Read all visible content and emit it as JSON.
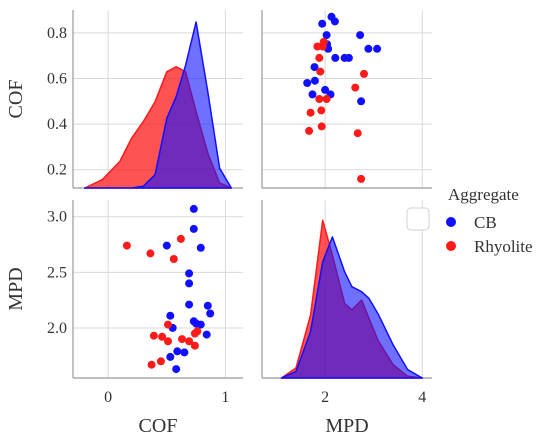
{
  "colors": {
    "cb": "#1010ff",
    "rhyolite": "#ff1a1a",
    "overlap": "#7b1fc9",
    "grid": "#d9d9d9",
    "axis": "#999999",
    "text": "#333333"
  },
  "legend": {
    "title": "Aggregate",
    "items": [
      {
        "label": "CB",
        "color": "#1010ff"
      },
      {
        "label": "Rhyolite",
        "color": "#ff1a1a"
      }
    ]
  },
  "chart_data": {
    "type": "pairplot",
    "variables": [
      "COF",
      "MPD"
    ],
    "hue": "Aggregate",
    "axes": {
      "COF": {
        "label": "COF",
        "range": [
          -0.3,
          1.15
        ],
        "ticks": [
          0,
          1
        ],
        "ticks_y": [
          0.2,
          0.4,
          0.6,
          0.8
        ],
        "range_y": [
          0.12,
          0.9
        ]
      },
      "MPD": {
        "label": "MPD",
        "range": [
          0.7,
          4.2
        ],
        "ticks": [
          2,
          4
        ],
        "ticks_y": [
          2.0,
          2.5,
          3.0
        ],
        "range_y": [
          1.55,
          3.15
        ]
      }
    },
    "points": {
      "CB": [
        {
          "cof": 0.73,
          "mpd": 3.07
        },
        {
          "cof": 0.73,
          "mpd": 2.89
        },
        {
          "cof": 0.5,
          "mpd": 2.74
        },
        {
          "cof": 0.79,
          "mpd": 2.72
        },
        {
          "cof": 0.87,
          "mpd": 2.13
        },
        {
          "cof": 0.85,
          "mpd": 2.2
        },
        {
          "cof": 0.69,
          "mpd": 2.49
        },
        {
          "cof": 0.69,
          "mpd": 2.4
        },
        {
          "cof": 0.69,
          "mpd": 2.21
        },
        {
          "cof": 0.59,
          "mpd": 1.79
        },
        {
          "cof": 0.53,
          "mpd": 2.11
        },
        {
          "cof": 0.55,
          "mpd": 2.0
        },
        {
          "cof": 0.65,
          "mpd": 1.78
        },
        {
          "cof": 0.75,
          "mpd": 2.04
        },
        {
          "cof": 0.79,
          "mpd": 2.03
        },
        {
          "cof": 0.73,
          "mpd": 2.06
        },
        {
          "cof": 0.84,
          "mpd": 1.94
        },
        {
          "cof": 0.53,
          "mpd": 1.74
        },
        {
          "cof": 0.58,
          "mpd": 1.63
        }
      ],
      "Rhyolite": [
        {
          "cof": 0.16,
          "mpd": 2.74
        },
        {
          "cof": 0.36,
          "mpd": 2.67
        },
        {
          "cof": 0.56,
          "mpd": 2.62
        },
        {
          "cof": 0.62,
          "mpd": 2.8
        },
        {
          "cof": 0.76,
          "mpd": 1.97
        },
        {
          "cof": 0.51,
          "mpd": 2.03
        },
        {
          "cof": 0.39,
          "mpd": 1.93
        },
        {
          "cof": 0.46,
          "mpd": 1.92
        },
        {
          "cof": 0.63,
          "mpd": 1.9
        },
        {
          "cof": 0.74,
          "mpd": 1.95
        },
        {
          "cof": 0.74,
          "mpd": 1.84
        },
        {
          "cof": 0.69,
          "mpd": 1.88
        },
        {
          "cof": 0.51,
          "mpd": 1.88
        },
        {
          "cof": 0.37,
          "mpd": 1.67
        },
        {
          "cof": 0.45,
          "mpd": 1.7
        }
      ]
    },
    "kde": {
      "COF": {
        "x": [
          -0.2,
          -0.05,
          0.1,
          0.2,
          0.3,
          0.4,
          0.5,
          0.58,
          0.66,
          0.75,
          0.85,
          0.95,
          1.05
        ],
        "CB": [
          0,
          0,
          0,
          0,
          0.01,
          0.08,
          0.42,
          0.55,
          0.74,
          1.0,
          0.58,
          0.12,
          0
        ],
        "Rhyolite": [
          0,
          0.05,
          0.16,
          0.3,
          0.4,
          0.52,
          0.7,
          0.73,
          0.7,
          0.46,
          0.21,
          0.03,
          0
        ]
      },
      "MPD": {
        "x": [
          1.1,
          1.4,
          1.7,
          1.95,
          2.15,
          2.4,
          2.55,
          2.75,
          2.9,
          3.1,
          3.4,
          3.7,
          4.0
        ],
        "CB": [
          0,
          0.04,
          0.28,
          0.7,
          0.85,
          0.64,
          0.55,
          0.52,
          0.48,
          0.38,
          0.2,
          0.05,
          0
        ],
        "Rhyolite": [
          0,
          0.06,
          0.38,
          0.95,
          0.74,
          0.45,
          0.41,
          0.47,
          0.36,
          0.22,
          0.08,
          0.01,
          0
        ]
      }
    }
  }
}
